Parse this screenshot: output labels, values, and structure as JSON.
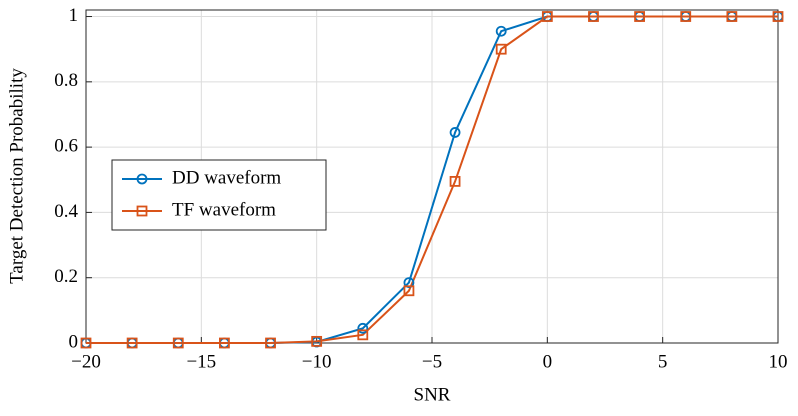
{
  "chart_data": {
    "type": "line",
    "x_label": "SNR",
    "y_label": "Target Detection Probability",
    "x": [
      -20,
      -18,
      -16,
      -14,
      -12,
      -10,
      -8,
      -6,
      -4,
      -2,
      0,
      2,
      4,
      6,
      8,
      10
    ],
    "series": [
      {
        "name": "DD waveform",
        "color": "#0072bd",
        "marker": "circle",
        "values": [
          0,
          0,
          0,
          0,
          0,
          0.003,
          0.045,
          0.185,
          0.645,
          0.955,
          1,
          1,
          1,
          1,
          1,
          1
        ]
      },
      {
        "name": "TF waveform",
        "color": "#d95319",
        "marker": "square",
        "values": [
          0,
          0,
          0,
          0,
          0,
          0.005,
          0.025,
          0.16,
          0.495,
          0.9,
          1,
          1,
          1,
          1,
          1,
          1
        ]
      }
    ],
    "xlim": [
      -20,
      10
    ],
    "xticks": [
      {
        "value": -20,
        "label": "−20"
      },
      {
        "value": -15,
        "label": "−15"
      },
      {
        "value": -10,
        "label": "−10"
      },
      {
        "value": -5,
        "label": "−5"
      },
      0,
      5,
      10
    ],
    "ylim": [
      0,
      1.02
    ],
    "yticks": [
      0,
      0.2,
      0.4,
      0.6,
      0.8,
      1
    ],
    "grid": true,
    "legend": "center-left"
  }
}
